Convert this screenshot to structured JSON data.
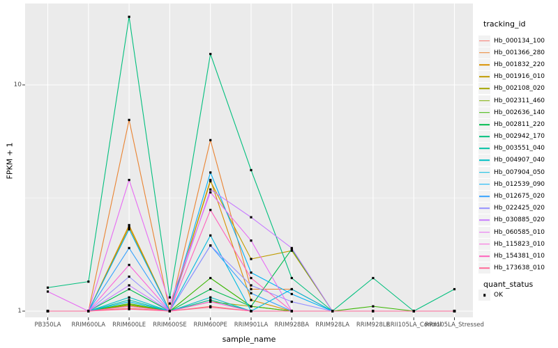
{
  "chart_data": {
    "type": "line",
    "title": "",
    "xlabel": "sample_name",
    "ylabel": "FPKM + 1",
    "y_scale": "log10",
    "ylim": [
      0.92,
      23
    ],
    "grid": true,
    "y_ticks": [
      {
        "value": 10,
        "label": "10"
      },
      {
        "value": 1,
        "label": "1"
      }
    ],
    "categories": [
      "PB350LA",
      "RRIM600LA",
      "RRIM600LE",
      "RRIM600SE",
      "RRIM600PE",
      "RRIM901LA",
      "RRIM928BA",
      "RRIM928LA",
      "RRIM928LE",
      "RRII105LA_Control",
      "RRII105LA_Stressed"
    ],
    "legend": {
      "series_title": "tracking_id",
      "point_title": "quant_status",
      "point_label": "OK",
      "point_shape": "filled-square",
      "position": "right"
    },
    "colors": {
      "panel_bg": "#EBEBEB",
      "grid": "#FFFFFF",
      "point": "#000000",
      "tick": "#333333"
    },
    "series": [
      {
        "name": "Hb_000134_100",
        "color": "#F8766D",
        "values": [
          1,
          1,
          1.03,
          1,
          1.05,
          1,
          1,
          1,
          1,
          1,
          1
        ]
      },
      {
        "name": "Hb_001366_280",
        "color": "#EA8331",
        "values": [
          1,
          1,
          7,
          1,
          5.7,
          1.25,
          1.25,
          1,
          1,
          1,
          1
        ]
      },
      {
        "name": "Hb_001832_220",
        "color": "#D89000",
        "values": [
          1,
          1,
          2.4,
          1,
          3.8,
          1.12,
          1,
          1,
          1,
          1,
          1
        ]
      },
      {
        "name": "Hb_001916_010",
        "color": "#C09B00",
        "values": [
          1,
          1,
          2.35,
          1,
          3.75,
          1.7,
          1.85,
          1,
          1,
          1,
          1
        ]
      },
      {
        "name": "Hb_002108_020",
        "color": "#A3A500",
        "values": [
          1,
          1,
          1.06,
          1,
          1.1,
          1.05,
          1,
          1,
          1,
          1,
          1
        ]
      },
      {
        "name": "Hb_002311_460",
        "color": "#7CAE00",
        "values": [
          1,
          1,
          1.07,
          1,
          1.12,
          1,
          1,
          1,
          1,
          1,
          1
        ]
      },
      {
        "name": "Hb_002636_140",
        "color": "#39B600",
        "values": [
          1,
          1,
          1.08,
          1,
          1.4,
          1.05,
          1,
          1,
          1.05,
          1,
          1
        ]
      },
      {
        "name": "Hb_002811_220",
        "color": "#00BB4E",
        "values": [
          1,
          1,
          1.25,
          1,
          1.25,
          1.05,
          1.88,
          1,
          1,
          1,
          1
        ]
      },
      {
        "name": "Hb_002942_170",
        "color": "#00BF7D",
        "values": [
          1.27,
          1.35,
          20,
          1.15,
          13.7,
          4.2,
          1.4,
          1,
          1.4,
          1,
          1.25
        ]
      },
      {
        "name": "Hb_003551_040",
        "color": "#00C1A3",
        "values": [
          1,
          1,
          1.12,
          1,
          1.12,
          1,
          1,
          1,
          1,
          1,
          1
        ]
      },
      {
        "name": "Hb_004907_040",
        "color": "#00BFC4",
        "values": [
          1,
          1,
          1.15,
          1,
          1.15,
          1,
          1,
          1,
          1,
          1,
          1
        ]
      },
      {
        "name": "Hb_007904_050",
        "color": "#00BAE0",
        "values": [
          1,
          1,
          1.1,
          1,
          2.16,
          1,
          1.25,
          1,
          1,
          1,
          1
        ]
      },
      {
        "name": "Hb_012539_090",
        "color": "#00B0F6",
        "values": [
          1,
          1,
          2.3,
          1,
          4.1,
          1.48,
          1.19,
          1,
          1,
          1,
          1
        ]
      },
      {
        "name": "Hb_012675_020",
        "color": "#35A2FF",
        "values": [
          1,
          1,
          1.9,
          1,
          1.95,
          1.2,
          1,
          1,
          1,
          1,
          1
        ]
      },
      {
        "name": "Hb_022425_020",
        "color": "#9590FF",
        "values": [
          1,
          1,
          1.42,
          1,
          1.95,
          1.3,
          1.1,
          1,
          1,
          1,
          1
        ]
      },
      {
        "name": "Hb_030885_020",
        "color": "#C77CFF",
        "values": [
          1,
          1,
          1.3,
          1,
          3.45,
          2.6,
          1.9,
          1,
          1,
          1,
          1
        ]
      },
      {
        "name": "Hb_060585_010",
        "color": "#E76BF3",
        "values": [
          1.22,
          1,
          3.8,
          1.08,
          3.35,
          2.05,
          1,
          1,
          1,
          1,
          1
        ]
      },
      {
        "name": "Hb_115823_010",
        "color": "#FA62DB",
        "values": [
          1,
          1,
          1.6,
          1,
          1.1,
          1,
          1,
          1,
          1,
          1,
          1
        ]
      },
      {
        "name": "Hb_154381_010",
        "color": "#FF62BC",
        "values": [
          1,
          1,
          1.05,
          1,
          2.8,
          1.4,
          1,
          1,
          1,
          1,
          1
        ]
      },
      {
        "name": "Hb_173638_010",
        "color": "#FF6A98",
        "values": [
          1,
          1,
          1.02,
          1,
          1.04,
          1,
          1,
          1,
          1,
          1,
          1
        ]
      }
    ]
  }
}
